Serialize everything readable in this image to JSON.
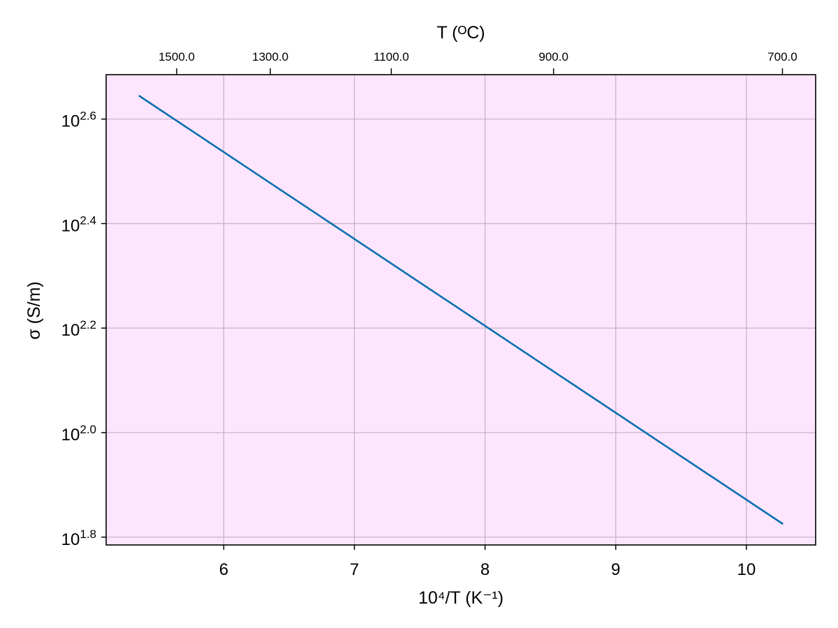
{
  "chart_data": {
    "type": "line",
    "title": "",
    "xlabel": "10⁴/T (K⁻¹)",
    "ylabel": "σ (S/m)",
    "top_xlabel": "T (ᴼC)",
    "xlim": [
      5.1,
      10.53
    ],
    "ylim_log10": [
      1.785,
      2.685
    ],
    "y_scale": "log10",
    "x_ticks": [
      6,
      7,
      8,
      9,
      10
    ],
    "x_tick_labels": [
      "6",
      "7",
      "8",
      "9",
      "10"
    ],
    "y_ticks_log10": [
      1.8,
      2.0,
      2.2,
      2.4,
      2.6
    ],
    "y_tick_labels": [
      {
        "base": "10",
        "exp": "1.8"
      },
      {
        "base": "10",
        "exp": "2.0"
      },
      {
        "base": "10",
        "exp": "2.2"
      },
      {
        "base": "10",
        "exp": "2.4"
      },
      {
        "base": "10",
        "exp": "2.6"
      }
    ],
    "top_ticks_celsius": [
      1500,
      1300,
      1100,
      900,
      700
    ],
    "top_tick_labels": [
      "1500.0",
      "1300.0",
      "1100.0",
      "900.0",
      "700.0"
    ],
    "grid": true,
    "background": "#fde6fd",
    "line_color": "#0a6eb0",
    "series": [
      {
        "x": [
          5.35,
          10.28
        ],
        "y_log10": [
          2.645,
          1.825
        ]
      }
    ]
  }
}
